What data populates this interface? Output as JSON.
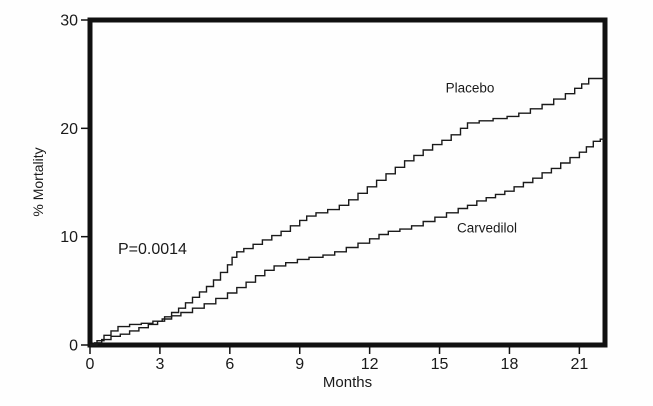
{
  "chart_data": {
    "type": "line",
    "subtype": "kaplan-meier-step",
    "title": "",
    "xlabel": "Months",
    "ylabel": "% Mortality",
    "annotation": "P=0.0014",
    "xlim": [
      0,
      22.1
    ],
    "ylim": [
      0,
      30
    ],
    "xticks": [
      0,
      3,
      6,
      9,
      12,
      15,
      18,
      21
    ],
    "yticks": [
      0,
      10,
      20,
      30
    ],
    "grid": false,
    "legend_position": "inline-labels",
    "frame_color": "#111111",
    "curve_color": "#1a1a1a",
    "series": [
      {
        "name": "Placebo",
        "final_value_pct": 24.6,
        "points": [
          [
            0,
            0
          ],
          [
            0.2,
            0.2
          ],
          [
            0.5,
            0.5
          ],
          [
            0.9,
            0.8
          ],
          [
            1.3,
            1.0
          ],
          [
            1.7,
            1.3
          ],
          [
            2.1,
            1.6
          ],
          [
            2.5,
            1.9
          ],
          [
            2.9,
            2.2
          ],
          [
            3.2,
            2.6
          ],
          [
            3.5,
            3.0
          ],
          [
            3.8,
            3.4
          ],
          [
            4.1,
            3.9
          ],
          [
            4.4,
            4.4
          ],
          [
            4.7,
            4.9
          ],
          [
            5.0,
            5.4
          ],
          [
            5.3,
            6.0
          ],
          [
            5.6,
            6.7
          ],
          [
            5.9,
            7.4
          ],
          [
            6.1,
            8.1
          ],
          [
            6.3,
            8.6
          ],
          [
            6.6,
            8.9
          ],
          [
            7.0,
            9.3
          ],
          [
            7.4,
            9.7
          ],
          [
            7.8,
            10.1
          ],
          [
            8.2,
            10.5
          ],
          [
            8.6,
            11.0
          ],
          [
            9.0,
            11.5
          ],
          [
            9.3,
            11.9
          ],
          [
            9.7,
            12.2
          ],
          [
            10.2,
            12.5
          ],
          [
            10.7,
            12.9
          ],
          [
            11.1,
            13.4
          ],
          [
            11.5,
            14.0
          ],
          [
            11.9,
            14.6
          ],
          [
            12.3,
            15.2
          ],
          [
            12.7,
            15.8
          ],
          [
            13.1,
            16.4
          ],
          [
            13.5,
            17.0
          ],
          [
            13.9,
            17.5
          ],
          [
            14.3,
            18.0
          ],
          [
            14.7,
            18.5
          ],
          [
            15.1,
            18.9
          ],
          [
            15.5,
            19.4
          ],
          [
            15.9,
            20.0
          ],
          [
            16.2,
            20.5
          ],
          [
            16.7,
            20.7
          ],
          [
            17.3,
            20.9
          ],
          [
            17.9,
            21.1
          ],
          [
            18.4,
            21.4
          ],
          [
            18.9,
            21.8
          ],
          [
            19.4,
            22.2
          ],
          [
            19.9,
            22.7
          ],
          [
            20.4,
            23.2
          ],
          [
            20.8,
            23.7
          ],
          [
            21.1,
            24.1
          ],
          [
            21.4,
            24.6
          ],
          [
            22.1,
            24.6
          ]
        ]
      },
      {
        "name": "Carvedilol",
        "final_value_pct": 19.0,
        "points": [
          [
            0,
            0
          ],
          [
            0.3,
            0.4
          ],
          [
            0.6,
            0.9
          ],
          [
            0.9,
            1.3
          ],
          [
            1.2,
            1.7
          ],
          [
            1.7,
            1.9
          ],
          [
            2.2,
            2.0
          ],
          [
            2.7,
            2.2
          ],
          [
            3.1,
            2.4
          ],
          [
            3.5,
            2.7
          ],
          [
            3.9,
            3.0
          ],
          [
            4.4,
            3.4
          ],
          [
            4.9,
            3.8
          ],
          [
            5.4,
            4.3
          ],
          [
            5.9,
            4.8
          ],
          [
            6.3,
            5.3
          ],
          [
            6.7,
            5.8
          ],
          [
            7.1,
            6.4
          ],
          [
            7.5,
            6.9
          ],
          [
            7.9,
            7.3
          ],
          [
            8.4,
            7.6
          ],
          [
            8.9,
            7.9
          ],
          [
            9.4,
            8.1
          ],
          [
            10.0,
            8.3
          ],
          [
            10.5,
            8.6
          ],
          [
            11.0,
            9.0
          ],
          [
            11.5,
            9.4
          ],
          [
            12.0,
            9.8
          ],
          [
            12.4,
            10.2
          ],
          [
            12.8,
            10.5
          ],
          [
            13.3,
            10.7
          ],
          [
            13.8,
            11.0
          ],
          [
            14.3,
            11.4
          ],
          [
            14.8,
            11.8
          ],
          [
            15.3,
            12.2
          ],
          [
            15.8,
            12.6
          ],
          [
            16.2,
            12.9
          ],
          [
            16.6,
            13.3
          ],
          [
            17.0,
            13.6
          ],
          [
            17.4,
            13.9
          ],
          [
            17.8,
            14.2
          ],
          [
            18.2,
            14.6
          ],
          [
            18.6,
            15.0
          ],
          [
            19.0,
            15.4
          ],
          [
            19.4,
            15.9
          ],
          [
            19.8,
            16.3
          ],
          [
            20.2,
            16.8
          ],
          [
            20.6,
            17.3
          ],
          [
            21.0,
            17.8
          ],
          [
            21.3,
            18.3
          ],
          [
            21.6,
            18.8
          ],
          [
            21.9,
            19.0
          ],
          [
            22.1,
            19.0
          ]
        ]
      }
    ]
  }
}
